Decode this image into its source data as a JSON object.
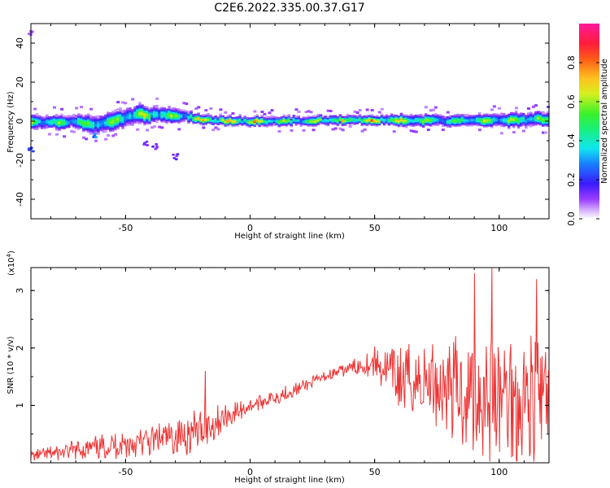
{
  "title": "C2E6.2022.335.00.37.G17",
  "chart_data": [
    {
      "type": "heatmap",
      "title": "C2E6.2022.335.00.37.G17",
      "xlabel": "Height of straight line (km)",
      "ylabel": "Frequency (Hz)",
      "xlim": [
        -88,
        120
      ],
      "ylim": [
        -50,
        50
      ],
      "xticks": [
        -50,
        0,
        50,
        100
      ],
      "yticks": [
        -40,
        -20,
        0,
        20,
        40
      ],
      "colorbar": {
        "label": "Normalized spectral amplitude",
        "range": [
          0.0,
          1.0
        ],
        "ticks": [
          0.0,
          0.2,
          0.4,
          0.6,
          0.8
        ],
        "tick_labels": [
          "0.0",
          "0.2",
          "0.4",
          "0.6",
          "0.8"
        ],
        "colormap": "rainbow (white → violet → blue → cyan → green → yellow → orange → red → magenta)"
      },
      "ridge": {
        "x": [
          -88,
          -80,
          -70,
          -62,
          -55,
          -45,
          -40,
          -35,
          -30,
          -25,
          -20,
          -10,
          0,
          10,
          20,
          30,
          40,
          50,
          60,
          70,
          80,
          90,
          100,
          110,
          120
        ],
        "center_freq": [
          0.5,
          -0.5,
          0,
          -2,
          0,
          4,
          3,
          3.5,
          3,
          2.5,
          1,
          0.5,
          0,
          0.3,
          0.5,
          0.8,
          0.8,
          0.8,
          0.6,
          0.5,
          0.3,
          0.6,
          0.8,
          1,
          1.5
        ],
        "width": [
          3,
          3,
          3,
          4,
          4,
          4,
          3.5,
          3.5,
          3,
          2.5,
          2,
          2,
          2,
          2,
          2,
          2,
          2,
          2,
          2.5,
          2.5,
          2.5,
          2.5,
          3,
          3,
          3
        ],
        "amplitude": [
          0.6,
          0.55,
          0.6,
          0.55,
          0.6,
          0.65,
          0.6,
          0.65,
          0.6,
          0.6,
          0.75,
          0.8,
          0.85,
          0.65,
          0.6,
          0.65,
          0.7,
          0.8,
          0.7,
          0.6,
          0.55,
          0.6,
          0.6,
          0.6,
          0.65
        ]
      },
      "scatter_blobs": [
        {
          "x": -88,
          "freq": -14,
          "amplitude": 0.25
        },
        {
          "x": -88,
          "freq": 45,
          "amplitude": 0.1
        },
        {
          "x": -62,
          "freq": -8,
          "amplitude": 0.3
        },
        {
          "x": -42,
          "freq": -12,
          "amplitude": 0.15
        },
        {
          "x": -38,
          "freq": -13,
          "amplitude": 0.15
        },
        {
          "x": -30,
          "freq": -18,
          "amplitude": 0.15
        }
      ]
    },
    {
      "type": "line",
      "xlabel": "Height of straight line (km)",
      "ylabel": "SNR (10 * v/v)",
      "multiplier_label": "(x10",
      "multiplier_exp": "4",
      "multiplier_close": ")",
      "xlim": [
        -88,
        120
      ],
      "ylim": [
        0,
        3.4
      ],
      "xticks": [
        -50,
        0,
        50,
        100
      ],
      "yticks": [
        1,
        2,
        3
      ],
      "color": "#ee3333",
      "envelope": {
        "x": [
          -88,
          -70,
          -55,
          -40,
          -30,
          -20,
          -10,
          0,
          10,
          20,
          30,
          40,
          50,
          55,
          60,
          70,
          80,
          90,
          100,
          110,
          120
        ],
        "mean": [
          0.12,
          0.22,
          0.3,
          0.38,
          0.46,
          0.55,
          0.8,
          1.0,
          1.15,
          1.3,
          1.5,
          1.65,
          1.75,
          1.6,
          1.45,
          1.4,
          1.35,
          1.25,
          1.15,
          1.1,
          1.1
        ],
        "amp": [
          0.1,
          0.18,
          0.25,
          0.3,
          0.35,
          0.4,
          0.25,
          0.15,
          0.15,
          0.12,
          0.1,
          0.12,
          0.3,
          0.45,
          0.7,
          0.8,
          0.9,
          1.3,
          1.4,
          1.4,
          1.2
        ]
      },
      "peaks": [
        {
          "x": -18,
          "y": 1.6
        },
        {
          "x": 90,
          "y": 3.3
        },
        {
          "x": 97,
          "y": 3.4
        },
        {
          "x": 115,
          "y": 3.2
        }
      ]
    }
  ]
}
